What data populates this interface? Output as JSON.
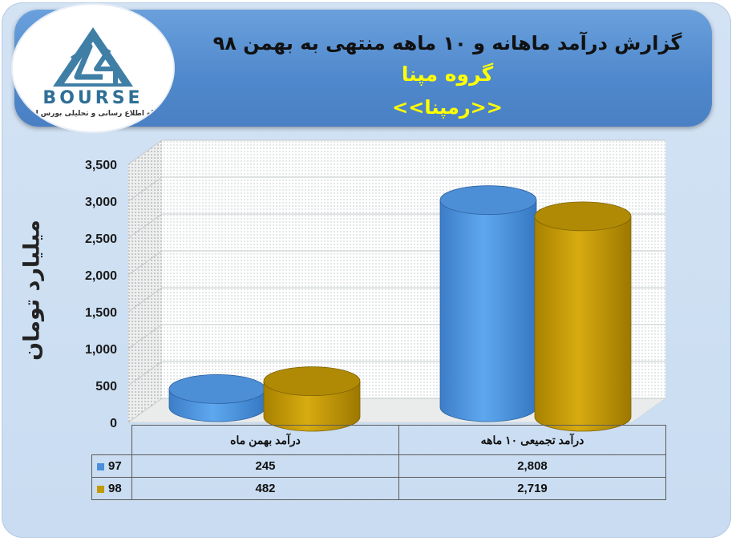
{
  "header": {
    "title": "گزارش درآمد ماهانه و ۱۰ ماهه منتهی به بهمن ۹۸",
    "company": "گروه مپنا",
    "symbol": "<<رمپنا>>"
  },
  "logo": {
    "wordmark": "BOURSE",
    "tagline": "پایگاه اطلاع رسانی و تحلیلی بورس ایران"
  },
  "colors": {
    "series_97": "#4a8fda",
    "series_98": "#c29a09"
  },
  "chart_data": {
    "type": "bar",
    "style": "3d-cylinder",
    "categories": [
      "درآمد بهمن  ماه",
      "درآمد تجمیعی ۱۰ ماهه"
    ],
    "series": [
      {
        "name": "97",
        "values": [
          245,
          2808
        ]
      },
      {
        "name": "98",
        "values": [
          482,
          2719
        ]
      }
    ],
    "ylabel": "میلیارد تومان",
    "ylim": [
      0,
      3500
    ],
    "yticks": [
      0,
      500,
      1000,
      1500,
      2000,
      2500,
      3000,
      3500
    ],
    "ytick_labels": [
      "0",
      "500",
      "1,000",
      "1,500",
      "2,000",
      "2,500",
      "3,000",
      "3,500"
    ],
    "grid": true,
    "legend": "data-table"
  },
  "table": {
    "rows": [
      {
        "series": "97",
        "values": [
          "245",
          "2,808"
        ]
      },
      {
        "series": "98",
        "values": [
          "482",
          "2,719"
        ]
      }
    ]
  }
}
